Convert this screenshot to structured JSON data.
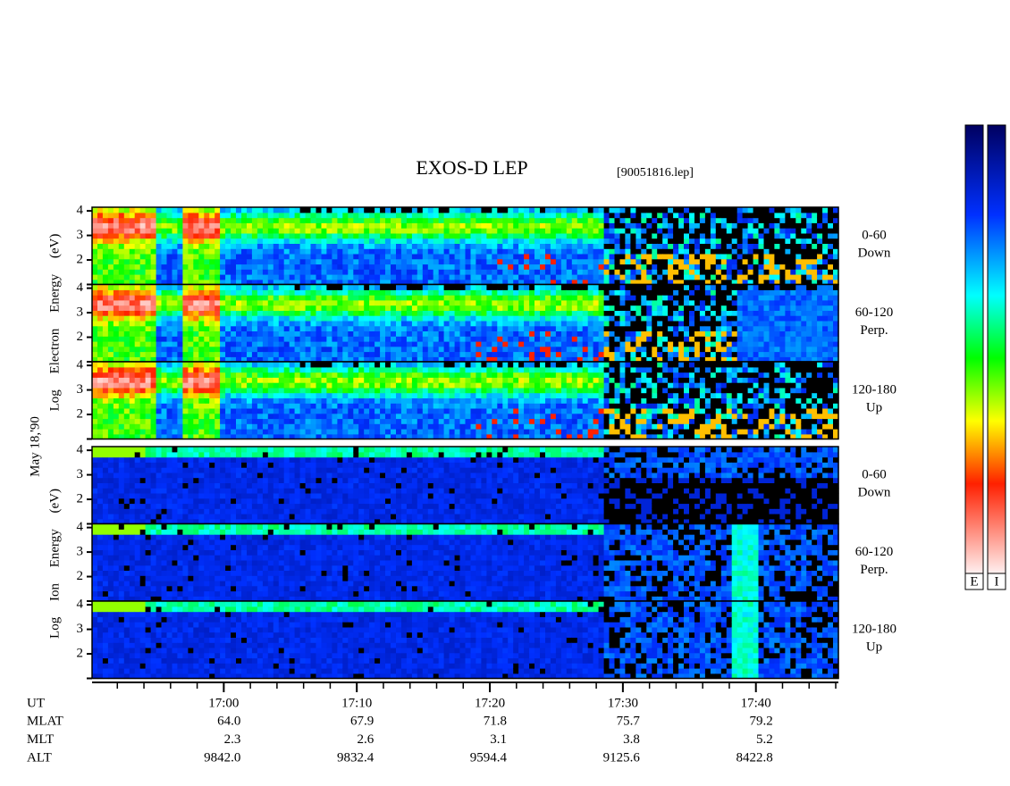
{
  "title": "EXOS-D LEP",
  "file": "[90051816.lep]",
  "date_label": "May 18,'90",
  "electron": {
    "ylabel": "Log Electron Energy (eV)",
    "ylim": [
      1,
      4.15
    ],
    "yticks": [
      2,
      3,
      4
    ],
    "panels": [
      {
        "range": "0-60",
        "direction": "Down"
      },
      {
        "range": "60-120",
        "direction": "Perp."
      },
      {
        "range": "120-180",
        "direction": "Up"
      }
    ]
  },
  "ion": {
    "ylabel": "Log Ion Energy (eV)",
    "ylim": [
      1,
      4.15
    ],
    "yticks": [
      2,
      3,
      4
    ],
    "panels": [
      {
        "range": "0-60",
        "direction": "Down"
      },
      {
        "range": "60-120",
        "direction": "Perp."
      },
      {
        "range": "120-180",
        "direction": "Up"
      }
    ]
  },
  "time_axis": {
    "xlim": [
      1010.1,
      1066.2
    ],
    "xticks": [
      {
        "value": 1020,
        "label": "17:00"
      },
      {
        "value": 1030,
        "label": "17:10"
      },
      {
        "value": 1040,
        "label": "17:20"
      },
      {
        "value": 1050,
        "label": "17:30"
      },
      {
        "value": 1060,
        "label": "17:40"
      }
    ]
  },
  "ephemeris": {
    "labels": [
      "UT",
      "MLAT",
      "MLT",
      "ALT"
    ],
    "rows": [
      [
        "64.0",
        "67.9",
        "71.8",
        "75.7",
        "79.2"
      ],
      [
        "2.3",
        "2.6",
        "3.1",
        "3.8",
        "5.2"
      ],
      [
        "9842.0",
        "9832.4",
        "9594.4",
        "9125.6",
        "8422.8"
      ]
    ]
  },
  "colorbar_labels": [
    "E",
    "I"
  ]
}
